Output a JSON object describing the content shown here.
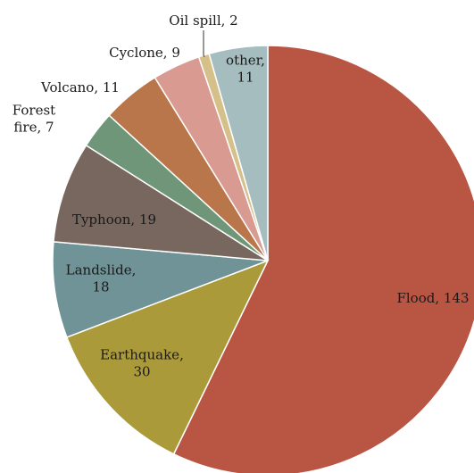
{
  "chart_data": {
    "type": "pie",
    "title": "",
    "slices": [
      {
        "label": "Flood",
        "value": 143,
        "color": "#b85643"
      },
      {
        "label": "Earthquake",
        "value": 30,
        "color": "#ab9a3a"
      },
      {
        "label": "Landslide",
        "value": 18,
        "color": "#6f9396"
      },
      {
        "label": "Typhoon",
        "value": 19,
        "color": "#77675f"
      },
      {
        "label": "Forest fire",
        "value": 7,
        "color": "#6f9679"
      },
      {
        "label": "Volcano",
        "value": 11,
        "color": "#b8764a"
      },
      {
        "label": "Cyclone",
        "value": 9,
        "color": "#d99a92"
      },
      {
        "label": "Oil spill",
        "value": 2,
        "color": "#d6c08a"
      },
      {
        "label": "other",
        "value": 11,
        "color": "#a6bdbf"
      }
    ],
    "data_labels": [
      [
        "Flood, 143"
      ],
      [
        "Earthquake,",
        "30"
      ],
      [
        "Landslide,",
        "18"
      ],
      [
        "Typhoon, 19"
      ],
      [
        "Forest",
        "fire, 7"
      ],
      [
        "Volcano, 11"
      ],
      [
        "Cyclone, 9"
      ],
      [
        "Oil spill, 2"
      ],
      [
        "other,",
        "11"
      ]
    ],
    "start_angle": "12 o'clock",
    "direction": "clockwise",
    "legend": "none"
  }
}
